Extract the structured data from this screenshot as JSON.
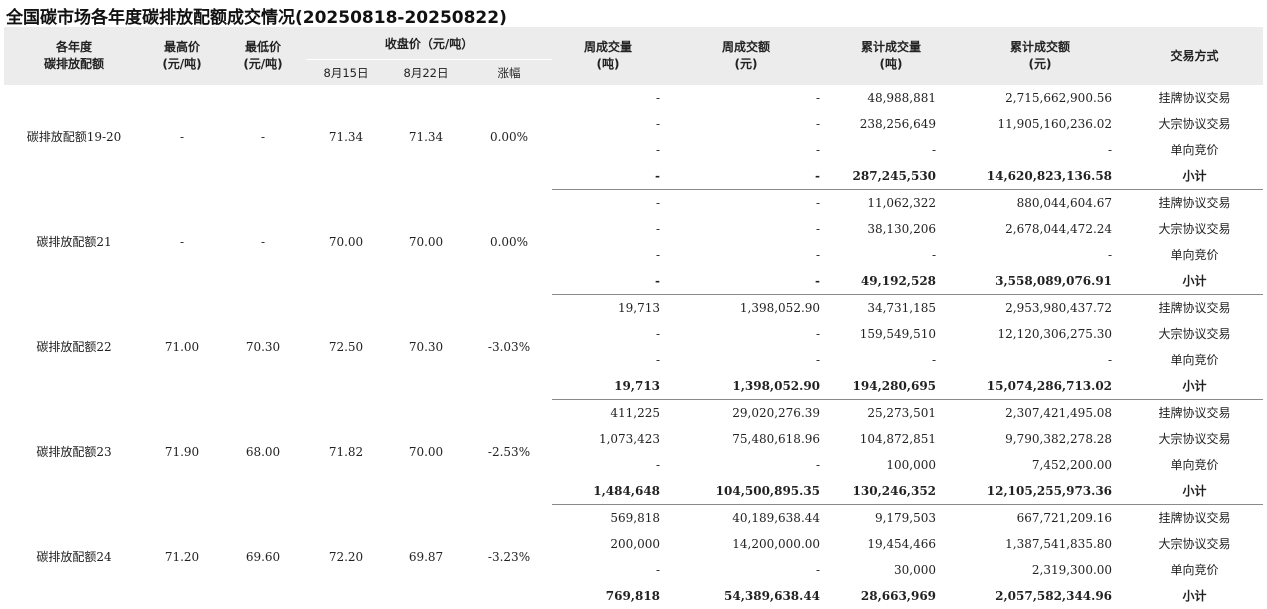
{
  "title": "全国碳市场各年度碳排放配额成交情况(20250818-20250822)",
  "headers": {
    "vintage": "各年度\n碳排放配额",
    "high": "最高价\n(元/吨)",
    "low": "最低价\n(元/吨)",
    "close": "收盘价（元/吨）",
    "close_prev": "8月15日",
    "close_curr": "8月22日",
    "change": "涨幅",
    "week_vol": "周成交量\n(吨)",
    "week_amt": "周成交额\n(元)",
    "cum_vol": "累计成交量\n(吨)",
    "cum_amt": "累计成交额\n(元)",
    "method": "交易方式"
  },
  "groups": [
    {
      "name": "碳排放配额19-20",
      "high": "-",
      "low": "-",
      "close_prev": "71.34",
      "close_curr": "71.34",
      "change": "0.00%",
      "rows": [
        {
          "week_vol": "-",
          "week_amt": "-",
          "cum_vol": "48,988,881",
          "cum_amt": "2,715,662,900.56",
          "method": "挂牌协议交易"
        },
        {
          "week_vol": "-",
          "week_amt": "-",
          "cum_vol": "238,256,649",
          "cum_amt": "11,905,160,236.02",
          "method": "大宗协议交易"
        },
        {
          "week_vol": "-",
          "week_amt": "-",
          "cum_vol": "-",
          "cum_amt": "-",
          "method": "单向竞价"
        },
        {
          "week_vol": "-",
          "week_amt": "-",
          "cum_vol": "287,245,530",
          "cum_amt": "14,620,823,136.58",
          "method": "小计"
        }
      ]
    },
    {
      "name": "碳排放配额21",
      "high": "-",
      "low": "-",
      "close_prev": "70.00",
      "close_curr": "70.00",
      "change": "0.00%",
      "rows": [
        {
          "week_vol": "-",
          "week_amt": "-",
          "cum_vol": "11,062,322",
          "cum_amt": "880,044,604.67",
          "method": "挂牌协议交易"
        },
        {
          "week_vol": "-",
          "week_amt": "-",
          "cum_vol": "38,130,206",
          "cum_amt": "2,678,044,472.24",
          "method": "大宗协议交易"
        },
        {
          "week_vol": "-",
          "week_amt": "-",
          "cum_vol": "-",
          "cum_amt": "-",
          "method": "单向竞价"
        },
        {
          "week_vol": "-",
          "week_amt": "-",
          "cum_vol": "49,192,528",
          "cum_amt": "3,558,089,076.91",
          "method": "小计"
        }
      ]
    },
    {
      "name": "碳排放配额22",
      "high": "71.00",
      "low": "70.30",
      "close_prev": "72.50",
      "close_curr": "70.30",
      "change": "-3.03%",
      "rows": [
        {
          "week_vol": "19,713",
          "week_amt": "1,398,052.90",
          "cum_vol": "34,731,185",
          "cum_amt": "2,953,980,437.72",
          "method": "挂牌协议交易"
        },
        {
          "week_vol": "-",
          "week_amt": "-",
          "cum_vol": "159,549,510",
          "cum_amt": "12,120,306,275.30",
          "method": "大宗协议交易"
        },
        {
          "week_vol": "-",
          "week_amt": "-",
          "cum_vol": "-",
          "cum_amt": "-",
          "method": "单向竞价"
        },
        {
          "week_vol": "19,713",
          "week_amt": "1,398,052.90",
          "cum_vol": "194,280,695",
          "cum_amt": "15,074,286,713.02",
          "method": "小计"
        }
      ]
    },
    {
      "name": "碳排放配额23",
      "high": "71.90",
      "low": "68.00",
      "close_prev": "71.82",
      "close_curr": "70.00",
      "change": "-2.53%",
      "rows": [
        {
          "week_vol": "411,225",
          "week_amt": "29,020,276.39",
          "cum_vol": "25,273,501",
          "cum_amt": "2,307,421,495.08",
          "method": "挂牌协议交易"
        },
        {
          "week_vol": "1,073,423",
          "week_amt": "75,480,618.96",
          "cum_vol": "104,872,851",
          "cum_amt": "9,790,382,278.28",
          "method": "大宗协议交易"
        },
        {
          "week_vol": "-",
          "week_amt": "-",
          "cum_vol": "100,000",
          "cum_amt": "7,452,200.00",
          "method": "单向竞价"
        },
        {
          "week_vol": "1,484,648",
          "week_amt": "104,500,895.35",
          "cum_vol": "130,246,352",
          "cum_amt": "12,105,255,973.36",
          "method": "小计"
        }
      ]
    },
    {
      "name": "碳排放配额24",
      "high": "71.20",
      "low": "69.60",
      "close_prev": "72.20",
      "close_curr": "69.87",
      "change": "-3.23%",
      "rows": [
        {
          "week_vol": "569,818",
          "week_amt": "40,189,638.44",
          "cum_vol": "9,179,503",
          "cum_amt": "667,721,209.16",
          "method": "挂牌协议交易"
        },
        {
          "week_vol": "200,000",
          "week_amt": "14,200,000.00",
          "cum_vol": "19,454,466",
          "cum_amt": "1,387,541,835.80",
          "method": "大宗协议交易"
        },
        {
          "week_vol": "-",
          "week_amt": "-",
          "cum_vol": "30,000",
          "cum_amt": "2,319,300.00",
          "method": "单向竞价"
        },
        {
          "week_vol": "769,818",
          "week_amt": "54,389,638.44",
          "cum_vol": "28,663,969",
          "cum_amt": "2,057,582,344.96",
          "method": "小计"
        }
      ]
    }
  ]
}
